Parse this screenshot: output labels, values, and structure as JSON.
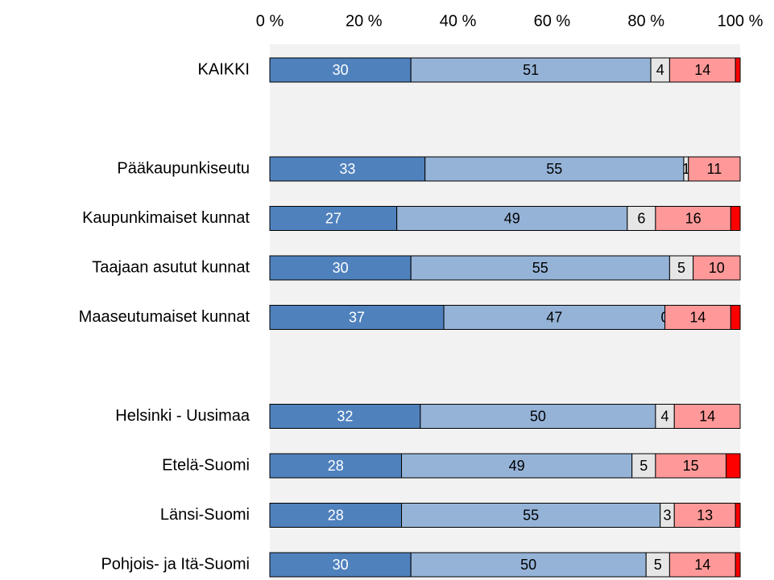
{
  "chart_data": {
    "type": "bar",
    "orientation": "horizontal",
    "stacked": true,
    "plot_background": "#f2f2f2",
    "categories": [
      "KAIKKI",
      null,
      "Pääkaupunkiseutu",
      "Kaupunkimaiset kunnat",
      "Taajaan asutut kunnat",
      "Maaseutumaiset kunnat",
      null,
      "Helsinki - Uusimaa",
      "Etelä-Suomi",
      "Länsi-Suomi",
      "Pohjois- ja Itä-Suomi"
    ],
    "series": [
      {
        "color": "#4f81bd",
        "label_color": "#ffffff",
        "show_labels": true,
        "values": [
          30,
          null,
          33,
          27,
          30,
          37,
          null,
          32,
          28,
          28,
          30
        ]
      },
      {
        "color": "#95b3d7",
        "label_color": "#000000",
        "show_labels": true,
        "values": [
          51,
          null,
          55,
          49,
          55,
          47,
          null,
          50,
          49,
          55,
          50
        ]
      },
      {
        "color": "#e6e6e6",
        "label_color": "#000000",
        "show_labels": true,
        "values": [
          4,
          null,
          1,
          6,
          5,
          0,
          null,
          4,
          5,
          3,
          5
        ]
      },
      {
        "color": "#ff9999",
        "label_color": "#000000",
        "show_labels": true,
        "values": [
          14,
          null,
          11,
          16,
          10,
          14,
          null,
          14,
          15,
          13,
          14
        ]
      },
      {
        "color": "#ff0000",
        "label_color": "#000000",
        "show_labels": false,
        "values": [
          1,
          null,
          0,
          2,
          0,
          2,
          null,
          0,
          3,
          1,
          1
        ]
      }
    ],
    "xlim": [
      0,
      100
    ],
    "xticks": [
      {
        "value": 0,
        "label": "0 %"
      },
      {
        "value": 20,
        "label": "20 %"
      },
      {
        "value": 40,
        "label": "40 %"
      },
      {
        "value": 60,
        "label": "60 %"
      },
      {
        "value": 80,
        "label": "80 %"
      },
      {
        "value": 100,
        "label": "100 %"
      }
    ],
    "grid": false
  }
}
